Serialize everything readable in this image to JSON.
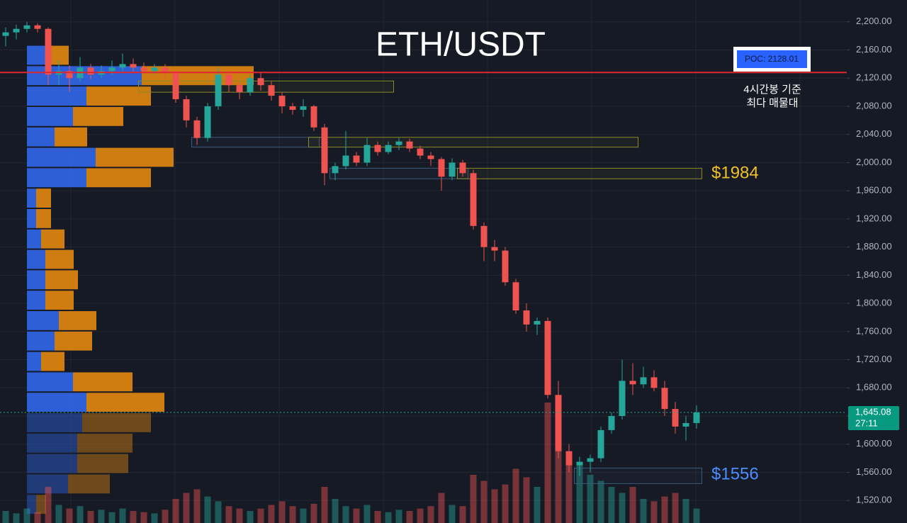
{
  "chart_data": {
    "type": "candlestick",
    "title": "ETH/USDT",
    "ylim": [
      1488,
      2231
    ],
    "yticks": [
      {
        "value": 1520,
        "label": "1,520.00"
      },
      {
        "value": 1560,
        "label": "1,560.00"
      },
      {
        "value": 1600,
        "label": "1,600.00"
      },
      {
        "value": 1640,
        "label": "1,640.00"
      },
      {
        "value": 1680,
        "label": "1,680.00"
      },
      {
        "value": 1720,
        "label": "1,720.00"
      },
      {
        "value": 1760,
        "label": "1,760.00"
      },
      {
        "value": 1800,
        "label": "1,800.00"
      },
      {
        "value": 1840,
        "label": "1,840.00"
      },
      {
        "value": 1880,
        "label": "1,880.00"
      },
      {
        "value": 1920,
        "label": "1,920.00"
      },
      {
        "value": 1960,
        "label": "1,960.00"
      },
      {
        "value": 2000,
        "label": "2,000.00"
      },
      {
        "value": 2040,
        "label": "2,040.00"
      },
      {
        "value": 2080,
        "label": "2,080.00"
      },
      {
        "value": 2120,
        "label": "2,120.00"
      },
      {
        "value": 2160,
        "label": "2,160.00"
      },
      {
        "value": 2200,
        "label": "2,200.00"
      }
    ],
    "grid": true,
    "up_color": "#26a69a",
    "down_color": "#ef5350",
    "open": [
      2180,
      2185,
      2190,
      2195,
      2190,
      2125,
      2130,
      2120,
      2135,
      2125,
      2130,
      2135,
      2140,
      2135,
      2130,
      2135,
      2128,
      2090,
      2060,
      2035,
      2080,
      2125,
      2110,
      2100,
      2120,
      2110,
      2095,
      2080,
      2075,
      2080,
      2050,
      1985,
      1995,
      2010,
      2000,
      2025,
      2015,
      2025,
      2030,
      2020,
      2010,
      2005,
      1980,
      2000,
      1985,
      1910,
      1880,
      1875,
      1830,
      1790,
      1770,
      1775,
      1670,
      1590,
      1570,
      1575,
      1580,
      1620,
      1640,
      1690,
      1685,
      1695,
      1680,
      1650,
      1625,
      1630
    ],
    "high": [
      2192,
      2196,
      2200,
      2198,
      2192,
      2145,
      2138,
      2150,
      2140,
      2138,
      2145,
      2155,
      2148,
      2142,
      2140,
      2140,
      2132,
      2095,
      2065,
      2085,
      2135,
      2130,
      2115,
      2125,
      2128,
      2115,
      2100,
      2085,
      2090,
      2082,
      2055,
      2000,
      2045,
      2015,
      2035,
      2030,
      2030,
      2035,
      2034,
      2024,
      2015,
      2008,
      2006,
      2004,
      1990,
      1915,
      1890,
      1880,
      1835,
      1800,
      1780,
      1780,
      1690,
      1600,
      1582,
      1585,
      1625,
      1645,
      1720,
      1715,
      1710,
      1705,
      1690,
      1660,
      1640,
      1655
    ],
    "low": [
      2165,
      2175,
      2185,
      2185,
      2110,
      2110,
      2100,
      2115,
      2118,
      2120,
      2125,
      2130,
      2128,
      2125,
      2125,
      2120,
      2085,
      2050,
      2025,
      2030,
      2075,
      2100,
      2090,
      2095,
      2102,
      2088,
      2070,
      2068,
      2065,
      2045,
      1968,
      1975,
      1990,
      1995,
      1995,
      2010,
      2012,
      2018,
      2015,
      2005,
      1995,
      1960,
      1975,
      1980,
      1905,
      1860,
      1860,
      1825,
      1785,
      1760,
      1755,
      1665,
      1580,
      1560,
      1555,
      1560,
      1575,
      1615,
      1635,
      1670,
      1680,
      1675,
      1640,
      1615,
      1605,
      1622
    ],
    "close": [
      2185,
      2190,
      2195,
      2190,
      2125,
      2130,
      2120,
      2135,
      2125,
      2130,
      2135,
      2140,
      2135,
      2130,
      2135,
      2128,
      2090,
      2060,
      2035,
      2080,
      2125,
      2110,
      2100,
      2120,
      2110,
      2095,
      2080,
      2075,
      2080,
      2050,
      1985,
      1995,
      2010,
      2000,
      2025,
      2015,
      2025,
      2030,
      2020,
      2010,
      2005,
      1980,
      2000,
      1985,
      1910,
      1880,
      1875,
      1830,
      1790,
      1770,
      1775,
      1670,
      1590,
      1570,
      1575,
      1580,
      1620,
      1640,
      1690,
      1685,
      1695,
      1680,
      1650,
      1625,
      1630,
      1645.08
    ],
    "volumes": [
      10,
      8,
      12,
      9,
      30,
      15,
      12,
      14,
      10,
      11,
      9,
      12,
      10,
      9,
      8,
      11,
      20,
      25,
      28,
      22,
      18,
      14,
      12,
      10,
      12,
      15,
      18,
      14,
      12,
      16,
      30,
      20,
      14,
      12,
      15,
      10,
      9,
      11,
      10,
      12,
      14,
      25,
      15,
      14,
      40,
      35,
      28,
      32,
      45,
      38,
      30,
      100,
      80,
      55,
      50,
      40,
      35,
      30,
      25,
      30,
      20,
      18,
      22,
      25,
      20,
      12
    ],
    "profile": {
      "bins": [
        2167,
        2138,
        2109,
        2080,
        2051,
        2022,
        1993,
        1964,
        1935,
        1906,
        1877,
        1848,
        1819,
        1790,
        1761,
        1732,
        1703,
        1674,
        1645,
        1616,
        1587,
        1558,
        1529,
        1500
      ],
      "series": [
        {
          "color": "#2f63e0",
          "values": [
            27,
            162,
            84,
            65,
            39,
            97,
            84,
            13,
            13,
            20,
            26,
            26,
            26,
            45,
            39,
            20,
            65,
            84,
            78,
            71,
            71,
            58,
            13
          ]
        },
        {
          "color": "#d9820f",
          "values": [
            32,
            158,
            91,
            71,
            46,
            110,
            91,
            21,
            21,
            33,
            40,
            46,
            40,
            53,
            53,
            33,
            84,
            110,
            97,
            78,
            72,
            59,
            14
          ]
        }
      ]
    },
    "zones": [
      {
        "low": 2100,
        "high": 2116,
        "start": 13,
        "end": 36,
        "color": "#8a8a2a"
      },
      {
        "low": 2022,
        "high": 2036,
        "start": 18,
        "end": 29,
        "color": "#3b5a7a"
      },
      {
        "low": 2022,
        "high": 2036,
        "start": 29,
        "end": 59,
        "color": "#8a8a2a"
      },
      {
        "low": 1977,
        "high": 1992,
        "start": 31,
        "end": 43,
        "color": "#3b5a7a"
      },
      {
        "low": 1977,
        "high": 1992,
        "start": 43,
        "end": 65,
        "color": "#8a8a2a"
      },
      {
        "low": 1544,
        "high": 1566,
        "start": 54,
        "end": 65,
        "color": "#3b5a7a"
      }
    ],
    "poc": {
      "value": 2128.01,
      "label": "POC: 2128.01",
      "note": [
        "4시간봉 기준",
        "최다 매물대"
      ]
    },
    "annotations": [
      {
        "text": "$1984",
        "color": "#f0c02a"
      },
      {
        "text": "$1556",
        "color": "#4c8dff"
      }
    ],
    "current_price": {
      "value": 1645.08,
      "label": "1,645.08",
      "countdown": "27:11"
    }
  }
}
